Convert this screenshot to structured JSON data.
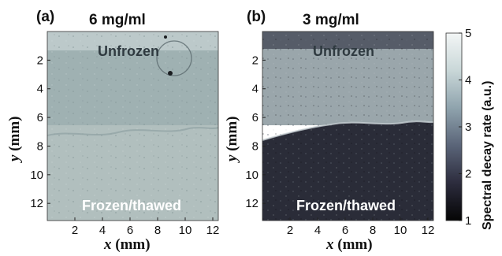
{
  "panels": [
    {
      "tag": "(a)",
      "title": "6 mg/ml",
      "top_region_label": "Unfrozen",
      "bottom_region_label": "Frozen/thawed",
      "colors": {
        "top": "#9fb1b2",
        "bottom": "#b1bfbe",
        "texture": "#8ea1a3"
      }
    },
    {
      "tag": "(b)",
      "title": "3 mg/ml",
      "top_region_label": "Unfrozen",
      "bottom_region_label": "Frozen/thawed",
      "colors": {
        "top": "#9aa6ab",
        "bottom": "#2a2c38",
        "texture": "#16171f"
      }
    }
  ],
  "x_axis": {
    "var": "x",
    "unit": "(mm)",
    "ticks": [
      "2",
      "4",
      "6",
      "8",
      "10",
      "12"
    ],
    "range": [
      0,
      12.4
    ]
  },
  "y_axis": {
    "var": "y",
    "unit": "(mm)",
    "ticks": [
      "2",
      "4",
      "6",
      "8",
      "10",
      "12"
    ],
    "range": [
      0,
      13.2
    ]
  },
  "colorbar": {
    "label": "Spectral decay rate  (a.u.)",
    "ticks": [
      "1",
      "2",
      "3",
      "4",
      "5"
    ],
    "range": [
      1,
      5
    ],
    "stops": [
      "#050505",
      "#2c2c3d",
      "#5a6478",
      "#8fa3ad",
      "#c9d7d8",
      "#f3f6f6"
    ]
  }
}
